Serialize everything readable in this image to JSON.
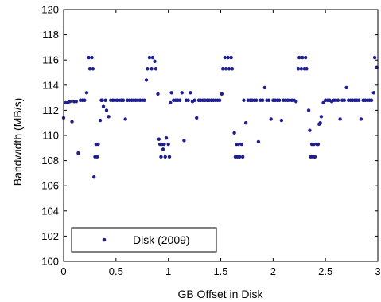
{
  "chart_data": {
    "type": "scatter",
    "xlabel": "GB Offset in Disk",
    "ylabel": "Bandwidth (MB/s)",
    "xlim": [
      0,
      3
    ],
    "ylim": [
      100,
      120
    ],
    "xticks": [
      0,
      0.5,
      1,
      1.5,
      2,
      2.5,
      3
    ],
    "xtick_labels": [
      "0",
      "0.5",
      "1",
      "1.5",
      "2",
      "2.5",
      "3"
    ],
    "yticks": [
      100,
      102,
      104,
      106,
      108,
      110,
      112,
      114,
      116,
      118,
      120
    ],
    "ytick_labels": [
      "100",
      "102",
      "104",
      "106",
      "108",
      "110",
      "112",
      "114",
      "116",
      "118",
      "120"
    ],
    "grid": false,
    "legend": {
      "position": "bottom-left",
      "entries": [
        "Disk (2009)"
      ]
    },
    "series": [
      {
        "name": "Disk (2009)",
        "color": "#1f1f8f",
        "marker": "dot",
        "points": [
          [
            0.0,
            111.4
          ],
          [
            0.02,
            112.6
          ],
          [
            0.04,
            112.6
          ],
          [
            0.06,
            112.7
          ],
          [
            0.08,
            111.1
          ],
          [
            0.1,
            112.7
          ],
          [
            0.12,
            112.7
          ],
          [
            0.14,
            108.6
          ],
          [
            0.16,
            112.8
          ],
          [
            0.18,
            112.8
          ],
          [
            0.2,
            112.8
          ],
          [
            0.22,
            113.4
          ],
          [
            0.24,
            116.2
          ],
          [
            0.25,
            115.3
          ],
          [
            0.27,
            116.2
          ],
          [
            0.28,
            115.3
          ],
          [
            0.29,
            106.7
          ],
          [
            0.3,
            108.3
          ],
          [
            0.31,
            109.3
          ],
          [
            0.32,
            108.3
          ],
          [
            0.33,
            109.3
          ],
          [
            0.35,
            111.2
          ],
          [
            0.36,
            112.8
          ],
          [
            0.37,
            112.8
          ],
          [
            0.38,
            112.3
          ],
          [
            0.4,
            112.8
          ],
          [
            0.41,
            112.0
          ],
          [
            0.43,
            111.5
          ],
          [
            0.45,
            112.8
          ],
          [
            0.47,
            112.8
          ],
          [
            0.49,
            112.8
          ],
          [
            0.51,
            112.8
          ],
          [
            0.53,
            112.8
          ],
          [
            0.55,
            112.8
          ],
          [
            0.57,
            112.8
          ],
          [
            0.59,
            111.3
          ],
          [
            0.61,
            112.8
          ],
          [
            0.63,
            112.8
          ],
          [
            0.65,
            112.8
          ],
          [
            0.67,
            112.8
          ],
          [
            0.69,
            112.8
          ],
          [
            0.71,
            112.8
          ],
          [
            0.73,
            112.8
          ],
          [
            0.75,
            112.8
          ],
          [
            0.77,
            112.8
          ],
          [
            0.79,
            114.4
          ],
          [
            0.8,
            115.3
          ],
          [
            0.82,
            116.2
          ],
          [
            0.84,
            115.3
          ],
          [
            0.85,
            116.2
          ],
          [
            0.87,
            115.9
          ],
          [
            0.88,
            115.3
          ],
          [
            0.9,
            113.3
          ],
          [
            0.91,
            109.7
          ],
          [
            0.92,
            109.3
          ],
          [
            0.93,
            108.3
          ],
          [
            0.94,
            109.3
          ],
          [
            0.95,
            108.9
          ],
          [
            0.96,
            109.3
          ],
          [
            0.97,
            108.3
          ],
          [
            0.98,
            109.8
          ],
          [
            1.0,
            109.3
          ],
          [
            1.01,
            108.3
          ],
          [
            1.02,
            112.6
          ],
          [
            1.03,
            113.4
          ],
          [
            1.05,
            112.8
          ],
          [
            1.07,
            112.8
          ],
          [
            1.09,
            112.8
          ],
          [
            1.11,
            112.8
          ],
          [
            1.13,
            113.4
          ],
          [
            1.15,
            109.6
          ],
          [
            1.17,
            112.8
          ],
          [
            1.19,
            112.8
          ],
          [
            1.21,
            113.4
          ],
          [
            1.23,
            112.7
          ],
          [
            1.25,
            112.8
          ],
          [
            1.27,
            111.4
          ],
          [
            1.29,
            112.8
          ],
          [
            1.31,
            112.8
          ],
          [
            1.33,
            112.8
          ],
          [
            1.35,
            112.8
          ],
          [
            1.37,
            112.8
          ],
          [
            1.39,
            112.8
          ],
          [
            1.41,
            112.8
          ],
          [
            1.43,
            112.8
          ],
          [
            1.45,
            112.8
          ],
          [
            1.47,
            112.8
          ],
          [
            1.49,
            112.8
          ],
          [
            1.51,
            113.3
          ],
          [
            1.52,
            115.3
          ],
          [
            1.54,
            116.2
          ],
          [
            1.55,
            115.3
          ],
          [
            1.57,
            116.2
          ],
          [
            1.58,
            115.3
          ],
          [
            1.6,
            116.2
          ],
          [
            1.61,
            115.3
          ],
          [
            1.63,
            110.2
          ],
          [
            1.64,
            108.3
          ],
          [
            1.65,
            109.3
          ],
          [
            1.66,
            108.3
          ],
          [
            1.67,
            109.3
          ],
          [
            1.68,
            108.3
          ],
          [
            1.7,
            109.3
          ],
          [
            1.71,
            108.3
          ],
          [
            1.72,
            112.8
          ],
          [
            1.74,
            111.0
          ],
          [
            1.76,
            112.8
          ],
          [
            1.78,
            112.8
          ],
          [
            1.8,
            112.8
          ],
          [
            1.82,
            112.8
          ],
          [
            1.84,
            112.8
          ],
          [
            1.86,
            109.5
          ],
          [
            1.88,
            112.8
          ],
          [
            1.9,
            112.8
          ],
          [
            1.92,
            113.8
          ],
          [
            1.94,
            112.8
          ],
          [
            1.96,
            112.8
          ],
          [
            1.98,
            111.3
          ],
          [
            2.0,
            112.8
          ],
          [
            2.02,
            112.8
          ],
          [
            2.04,
            112.8
          ],
          [
            2.06,
            112.8
          ],
          [
            2.08,
            111.2
          ],
          [
            2.1,
            112.8
          ],
          [
            2.12,
            112.8
          ],
          [
            2.14,
            112.8
          ],
          [
            2.16,
            112.8
          ],
          [
            2.18,
            112.8
          ],
          [
            2.2,
            112.8
          ],
          [
            2.22,
            112.7
          ],
          [
            2.24,
            115.3
          ],
          [
            2.25,
            116.2
          ],
          [
            2.27,
            115.3
          ],
          [
            2.28,
            116.2
          ],
          [
            2.3,
            115.3
          ],
          [
            2.31,
            116.2
          ],
          [
            2.32,
            115.3
          ],
          [
            2.34,
            112.0
          ],
          [
            2.35,
            110.4
          ],
          [
            2.36,
            108.3
          ],
          [
            2.37,
            109.3
          ],
          [
            2.38,
            108.3
          ],
          [
            2.39,
            109.3
          ],
          [
            2.4,
            108.3
          ],
          [
            2.42,
            109.3
          ],
          [
            2.43,
            109.3
          ],
          [
            2.44,
            110.9
          ],
          [
            2.45,
            111.0
          ],
          [
            2.46,
            111.5
          ],
          [
            2.48,
            112.6
          ],
          [
            2.5,
            112.8
          ],
          [
            2.52,
            112.8
          ],
          [
            2.54,
            112.8
          ],
          [
            2.56,
            112.7
          ],
          [
            2.58,
            112.8
          ],
          [
            2.6,
            112.8
          ],
          [
            2.62,
            112.8
          ],
          [
            2.64,
            111.3
          ],
          [
            2.66,
            112.8
          ],
          [
            2.68,
            112.8
          ],
          [
            2.7,
            113.8
          ],
          [
            2.72,
            112.8
          ],
          [
            2.74,
            112.8
          ],
          [
            2.76,
            112.8
          ],
          [
            2.78,
            112.8
          ],
          [
            2.8,
            112.8
          ],
          [
            2.82,
            112.8
          ],
          [
            2.84,
            111.3
          ],
          [
            2.86,
            112.8
          ],
          [
            2.88,
            112.8
          ],
          [
            2.9,
            112.8
          ],
          [
            2.92,
            112.8
          ],
          [
            2.94,
            112.8
          ],
          [
            2.96,
            113.4
          ],
          [
            2.97,
            116.2
          ],
          [
            2.99,
            115.4
          ]
        ]
      }
    ]
  }
}
